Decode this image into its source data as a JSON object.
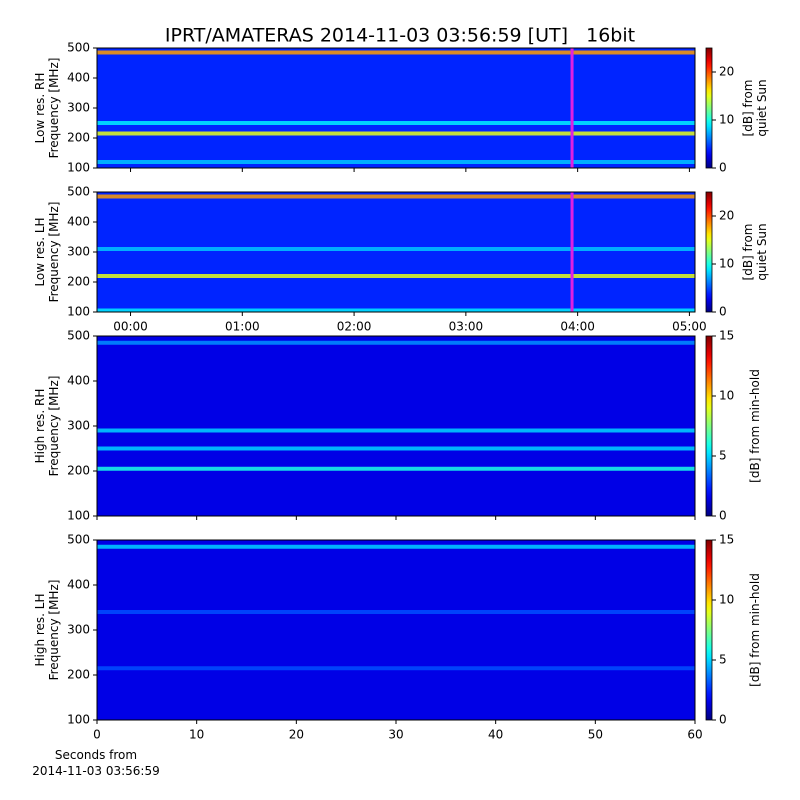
{
  "title": "IPRT/AMATERAS 2014-11-03 03:56:59 [UT]   16bit",
  "chart_data": [
    {
      "type": "heatmap",
      "ylabel": [
        "Low res. RH",
        "Frequency [MHz]"
      ],
      "xlim": [
        -0.3,
        5.05
      ],
      "ylim": [
        100,
        500
      ],
      "xticks": [
        {
          "value": 0,
          "label": "00:00"
        },
        {
          "value": 1,
          "label": "01:00"
        },
        {
          "value": 2,
          "label": "02:00"
        },
        {
          "value": 3,
          "label": "03:00"
        },
        {
          "value": 4,
          "label": "04:00"
        },
        {
          "value": 5,
          "label": "05:00"
        }
      ],
      "show_xticklabels": false,
      "yticks": [
        100,
        200,
        300,
        400,
        500
      ],
      "colormap": "jet",
      "zlim": [
        0,
        25
      ],
      "zticks": [
        0,
        10,
        20
      ],
      "zlabel": [
        "[dB] from",
        "quiet Sun"
      ],
      "background_z": 4,
      "features": [
        {
          "y": 485,
          "z": 18
        },
        {
          "y": 215,
          "z": 15
        },
        {
          "y": 250,
          "z": 9
        },
        {
          "y": 120,
          "z": 8
        }
      ],
      "marker_x": 3.95,
      "marker_color": "#e020e0"
    },
    {
      "type": "heatmap",
      "ylabel": [
        "Low res. LH",
        "Frequency [MHz]"
      ],
      "xlim": [
        -0.3,
        5.05
      ],
      "ylim": [
        100,
        500
      ],
      "xticks": [
        {
          "value": 0,
          "label": "00:00"
        },
        {
          "value": 1,
          "label": "01:00"
        },
        {
          "value": 2,
          "label": "02:00"
        },
        {
          "value": 3,
          "label": "03:00"
        },
        {
          "value": 4,
          "label": "04:00"
        },
        {
          "value": 5,
          "label": "05:00"
        }
      ],
      "show_xticklabels": true,
      "yticks": [
        100,
        200,
        300,
        400,
        500
      ],
      "colormap": "jet",
      "zlim": [
        0,
        25
      ],
      "zticks": [
        0,
        10,
        20
      ],
      "zlabel": [
        "[dB] from",
        "quiet Sun"
      ],
      "background_z": 4,
      "features": [
        {
          "y": 485,
          "z": 18
        },
        {
          "y": 220,
          "z": 15
        },
        {
          "y": 310,
          "z": 8
        },
        {
          "y": 105,
          "z": 9
        }
      ],
      "marker_x": 3.95,
      "marker_color": "#e020e0"
    },
    {
      "type": "heatmap",
      "ylabel": [
        "High res. RH",
        "Frequency [MHz]"
      ],
      "xlim": [
        0,
        60
      ],
      "ylim": [
        100,
        500
      ],
      "xticks": [
        0,
        10,
        20,
        30,
        40,
        50,
        60
      ],
      "show_xticklabels": false,
      "yticks": [
        100,
        200,
        300,
        400,
        500
      ],
      "colormap": "jet",
      "zlim": [
        0,
        15
      ],
      "zticks": [
        0,
        5,
        10,
        15
      ],
      "zlabel": [
        "[dB] from min-hold"
      ],
      "background_z": 1.5,
      "features": [
        {
          "y": 485,
          "z": 4
        },
        {
          "y": 290,
          "z": 5
        },
        {
          "y": 250,
          "z": 5
        },
        {
          "y": 205,
          "z": 6
        }
      ]
    },
    {
      "type": "heatmap",
      "ylabel": [
        "High res. LH",
        "Frequency [MHz]"
      ],
      "xlim": [
        0,
        60
      ],
      "ylim": [
        100,
        500
      ],
      "xticks": [
        0,
        10,
        20,
        30,
        40,
        50,
        60
      ],
      "show_xticklabels": true,
      "yticks": [
        100,
        200,
        300,
        400,
        500
      ],
      "colormap": "jet",
      "zlim": [
        0,
        15
      ],
      "zticks": [
        0,
        5,
        10,
        15
      ],
      "zlabel": [
        "[dB] from min-hold"
      ],
      "xlabel": [
        "Seconds from",
        "2014-11-03 03:56:59"
      ],
      "background_z": 1.5,
      "features": [
        {
          "y": 485,
          "z": 5
        },
        {
          "y": 340,
          "z": 3
        },
        {
          "y": 215,
          "z": 3
        }
      ]
    }
  ]
}
